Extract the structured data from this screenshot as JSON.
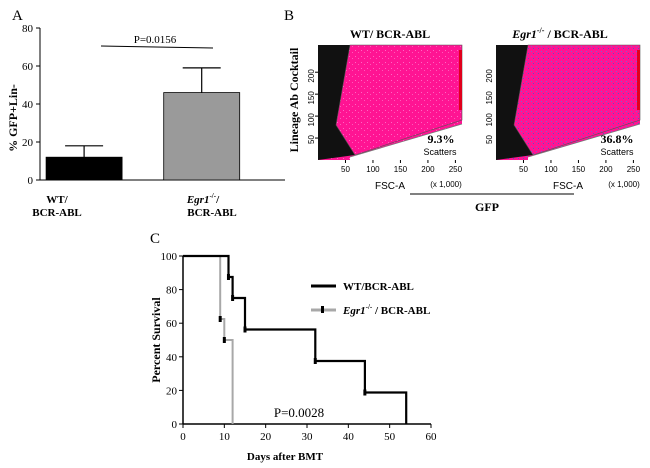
{
  "panel_labels": {
    "a": "A",
    "b": "B",
    "c": "C"
  },
  "colors": {
    "wt_bar": "#000000",
    "egr1_bar": "#9a9a9a",
    "flow_bg": "#ff1493",
    "flow_gate_dark": "#111111",
    "survival_wt": "#000000",
    "survival_egr1": "#a8a8a8",
    "channel_red": "#e0001b"
  },
  "chart_data": [
    {
      "type": "bar",
      "panel": "A",
      "ylabel": "% GFP+Lin-",
      "ylim": [
        0,
        80
      ],
      "yticks": [
        0,
        20,
        40,
        60,
        80
      ],
      "categories": [
        {
          "line1": "WT/",
          "line2": "BCR-ABL"
        },
        {
          "line1": "Egr1",
          "sup": "-/-",
          "line1b": "/",
          "line2": "BCR-ABL"
        }
      ],
      "values": [
        12,
        46
      ],
      "errors": [
        6,
        13
      ],
      "pvalue": "P=0.0156"
    },
    {
      "type": "scatter",
      "panel": "B",
      "xlabel": "FSC-A",
      "xunit": "(x 1,000)",
      "ylabel": "Lineage Ab Cocktail",
      "group_xlabel": "GFP",
      "xticks": [
        50,
        100,
        150,
        200,
        250
      ],
      "yticks": [
        50,
        100,
        150,
        200
      ],
      "gate_label": "Scatters",
      "plots": [
        {
          "title": "WT/ BCR-ABL",
          "percent": "9.3%"
        },
        {
          "title_italic": "Egr1",
          "title_sup": "-/-",
          "title_rest": " / BCR-ABL",
          "percent": "36.8%"
        }
      ]
    },
    {
      "type": "line",
      "panel": "C",
      "xlabel": "Days after BMT",
      "ylabel": "Percent Survival",
      "xlim": [
        0,
        60
      ],
      "ylim": [
        0,
        100
      ],
      "xticks": [
        0,
        10,
        20,
        30,
        40,
        50,
        60
      ],
      "yticks": [
        0,
        20,
        40,
        60,
        80,
        100
      ],
      "pvalue": "P=0.0028",
      "series": [
        {
          "name": "WT/BCR-ABL",
          "steps": [
            [
              0,
              100
            ],
            [
              11,
              100
            ],
            [
              11,
              87.5
            ],
            [
              12,
              87.5
            ],
            [
              12,
              75
            ],
            [
              15,
              75
            ],
            [
              15,
              56.25
            ],
            [
              32,
              56.25
            ],
            [
              32,
              37.5
            ],
            [
              44,
              37.5
            ],
            [
              44,
              18.75
            ],
            [
              54,
              18.75
            ],
            [
              54,
              0
            ]
          ]
        },
        {
          "name_italic": "Egr1",
          "name_sup": "-/-",
          "name_rest": " / BCR-ABL",
          "steps": [
            [
              0,
              100
            ],
            [
              9,
              100
            ],
            [
              9,
              62.5
            ],
            [
              10,
              62.5
            ],
            [
              10,
              50
            ],
            [
              12,
              50
            ],
            [
              12,
              0
            ]
          ]
        }
      ]
    }
  ]
}
